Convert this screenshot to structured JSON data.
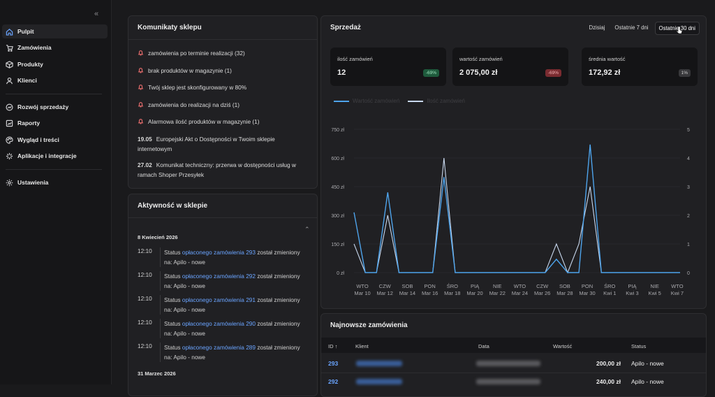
{
  "sidebar": {
    "items": [
      {
        "label": "Pulpit",
        "icon": "home-icon"
      },
      {
        "label": "Zamówienia",
        "icon": "cart-icon"
      },
      {
        "label": "Produkty",
        "icon": "box-icon"
      },
      {
        "label": "Klienci",
        "icon": "user-icon"
      },
      {
        "label": "Rozwój sprzedaży",
        "icon": "growth-icon"
      },
      {
        "label": "Raporty",
        "icon": "report-icon"
      },
      {
        "label": "Wygląd i treści",
        "icon": "palette-icon"
      },
      {
        "label": "Aplikacje i integracje",
        "icon": "puzzle-icon"
      },
      {
        "label": "Ustawienia",
        "icon": "gear-icon"
      }
    ]
  },
  "messages": {
    "title": "Komunikaty sklepu",
    "alerts": [
      "zamówienia po terminie realizacji (32)",
      "brak produktów w magazynie (1)",
      "Twój sklep jest skonfigurowany w 80%",
      "zamówienia do realizacji na dziś (1)",
      "Alarmowa ilość produktów w magazynie (1)"
    ],
    "news": [
      {
        "date": "19.05",
        "text": "Europejski Akt o Dostępności w Twoim sklepie internetowym"
      },
      {
        "date": "27.02",
        "text": "Komunikat techniczny: przerwa w dostępności usług w ramach Shoper Przesyłek"
      }
    ]
  },
  "activity": {
    "title": "Aktywność w sklepie",
    "date1": "8 Kwiecień 2026",
    "date2": "31 Marzec 2026",
    "prefix": "Status",
    "link_text": "opłaconego zamówienia",
    "suffix": "został zmieniony na: Apilo - nowe",
    "rows": [
      {
        "time": "12:10",
        "order": "293"
      },
      {
        "time": "12:10",
        "order": "292"
      },
      {
        "time": "12:10",
        "order": "291"
      },
      {
        "time": "12:10",
        "order": "290"
      },
      {
        "time": "12:10",
        "order": "289"
      }
    ]
  },
  "sales": {
    "title": "Sprzedaż",
    "tabs": [
      "Dzisiaj",
      "Ostatnie 7 dni",
      "Ostatnie 30 dni"
    ],
    "stats": [
      {
        "label": "ilość zamówień",
        "value": "12",
        "badge": "-69%",
        "badge_color": "#1e5a3c"
      },
      {
        "label": "wartość zamówień",
        "value": "2 075,00 zł",
        "badge": "-69%",
        "badge_color": "#7a2b30"
      },
      {
        "label": "średnia wartość",
        "value": "172,92 zł",
        "badge": "1%",
        "badge_color": "#38383b"
      }
    ]
  },
  "chart_data": {
    "type": "line",
    "legend": [
      "Wartość zamówień",
      "Ilość zamówień"
    ],
    "y_left_ticks": [
      "750 zł",
      "600 zł",
      "450 zł",
      "300 zł",
      "150 zł",
      "0 zł"
    ],
    "y_right_ticks": [
      "5",
      "4",
      "3",
      "2",
      "1",
      "0"
    ],
    "ylim_left": [
      0,
      750
    ],
    "ylim_right": [
      0,
      5
    ],
    "x_labels": [
      [
        "WTO",
        "Mar 10"
      ],
      [
        "CZW",
        "Mar 12"
      ],
      [
        "SOB",
        "Mar 14"
      ],
      [
        "PON",
        "Mar 16"
      ],
      [
        "ŚRO",
        "Mar 18"
      ],
      [
        "PIĄ",
        "Mar 20"
      ],
      [
        "NIE",
        "Mar 22"
      ],
      [
        "WTO",
        "Mar 24"
      ],
      [
        "CZW",
        "Mar 26"
      ],
      [
        "SOB",
        "Mar 28"
      ],
      [
        "PON",
        "Mar 30"
      ],
      [
        "ŚRO",
        "Kwi 1"
      ],
      [
        "PIĄ",
        "Kwi 3"
      ],
      [
        "NIE",
        "Kwi 5"
      ],
      [
        "WTO",
        "Kwi 7"
      ]
    ],
    "series": [
      {
        "name": "Wartość zamówień",
        "color": "#4ea4ec",
        "values": [
          315,
          0,
          0,
          420,
          0,
          0,
          0,
          0,
          500,
          0,
          0,
          0,
          0,
          0,
          0,
          0,
          0,
          0,
          70,
          0,
          0,
          670,
          0,
          0,
          0,
          0,
          0,
          0,
          0,
          0
        ]
      },
      {
        "name": "Ilość zamówień",
        "color": "#c8d8ee",
        "values": [
          1,
          0,
          0,
          2,
          0,
          0,
          0,
          0,
          4,
          0,
          0,
          0,
          0,
          0,
          0,
          0,
          0,
          0,
          1,
          0,
          1,
          3,
          0,
          0,
          0,
          0,
          0,
          0,
          0,
          0
        ]
      }
    ]
  },
  "orders": {
    "title": "Najnowsze zamówienia",
    "headers": {
      "id": "ID",
      "client": "Klient",
      "date": "Data",
      "value": "Wartość",
      "status": "Status"
    },
    "rows": [
      {
        "id": "293",
        "value": "200,00 zł",
        "status": "Apilo - nowe"
      },
      {
        "id": "292",
        "value": "240,00 zł",
        "status": "Apilo - nowe"
      }
    ]
  }
}
